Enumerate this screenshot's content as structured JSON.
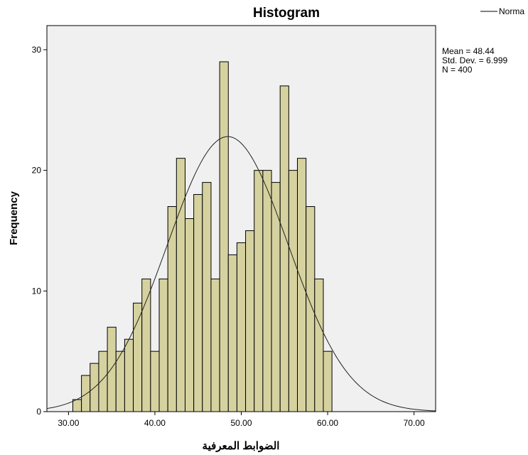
{
  "chart_data": {
    "type": "bar",
    "title": "Histogram",
    "xlabel": "الضوابط المعرفية",
    "ylabel": "Frequency",
    "xlim": [
      27.5,
      72.5
    ],
    "ylim": [
      0,
      32
    ],
    "x_ticks": [
      "30.00",
      "40.00",
      "50.00",
      "60.00",
      "70.00"
    ],
    "y_ticks": [
      "0",
      "10",
      "20",
      "30"
    ],
    "bin_width": 1,
    "bins": [
      {
        "x": 31,
        "value": 1
      },
      {
        "x": 32,
        "value": 3
      },
      {
        "x": 33,
        "value": 4
      },
      {
        "x": 34,
        "value": 5
      },
      {
        "x": 35,
        "value": 7
      },
      {
        "x": 36,
        "value": 5
      },
      {
        "x": 37,
        "value": 6
      },
      {
        "x": 38,
        "value": 9
      },
      {
        "x": 39,
        "value": 11
      },
      {
        "x": 40,
        "value": 5
      },
      {
        "x": 41,
        "value": 11
      },
      {
        "x": 42,
        "value": 17
      },
      {
        "x": 43,
        "value": 21
      },
      {
        "x": 44,
        "value": 16
      },
      {
        "x": 45,
        "value": 18
      },
      {
        "x": 46,
        "value": 19
      },
      {
        "x": 47,
        "value": 11
      },
      {
        "x": 48,
        "value": 29
      },
      {
        "x": 49,
        "value": 13
      },
      {
        "x": 50,
        "value": 14
      },
      {
        "x": 51,
        "value": 15
      },
      {
        "x": 52,
        "value": 20
      },
      {
        "x": 53,
        "value": 20
      },
      {
        "x": 54,
        "value": 19
      },
      {
        "x": 55,
        "value": 27
      },
      {
        "x": 56,
        "value": 20
      },
      {
        "x": 57,
        "value": 21
      },
      {
        "x": 58,
        "value": 17
      },
      {
        "x": 59,
        "value": 11
      },
      {
        "x": 60,
        "value": 5
      }
    ],
    "normal_curve": {
      "mean": 48.44,
      "sd": 6.999,
      "n": 400
    },
    "stats": [
      "Mean = 48.44",
      "Std. Dev. = 6.999",
      "N = 400"
    ],
    "legend": {
      "label": "Norma",
      "placement": "top-right"
    },
    "bar_color": "#d6d2a0",
    "plot_bg": "#f0f0f0",
    "grid": false
  }
}
